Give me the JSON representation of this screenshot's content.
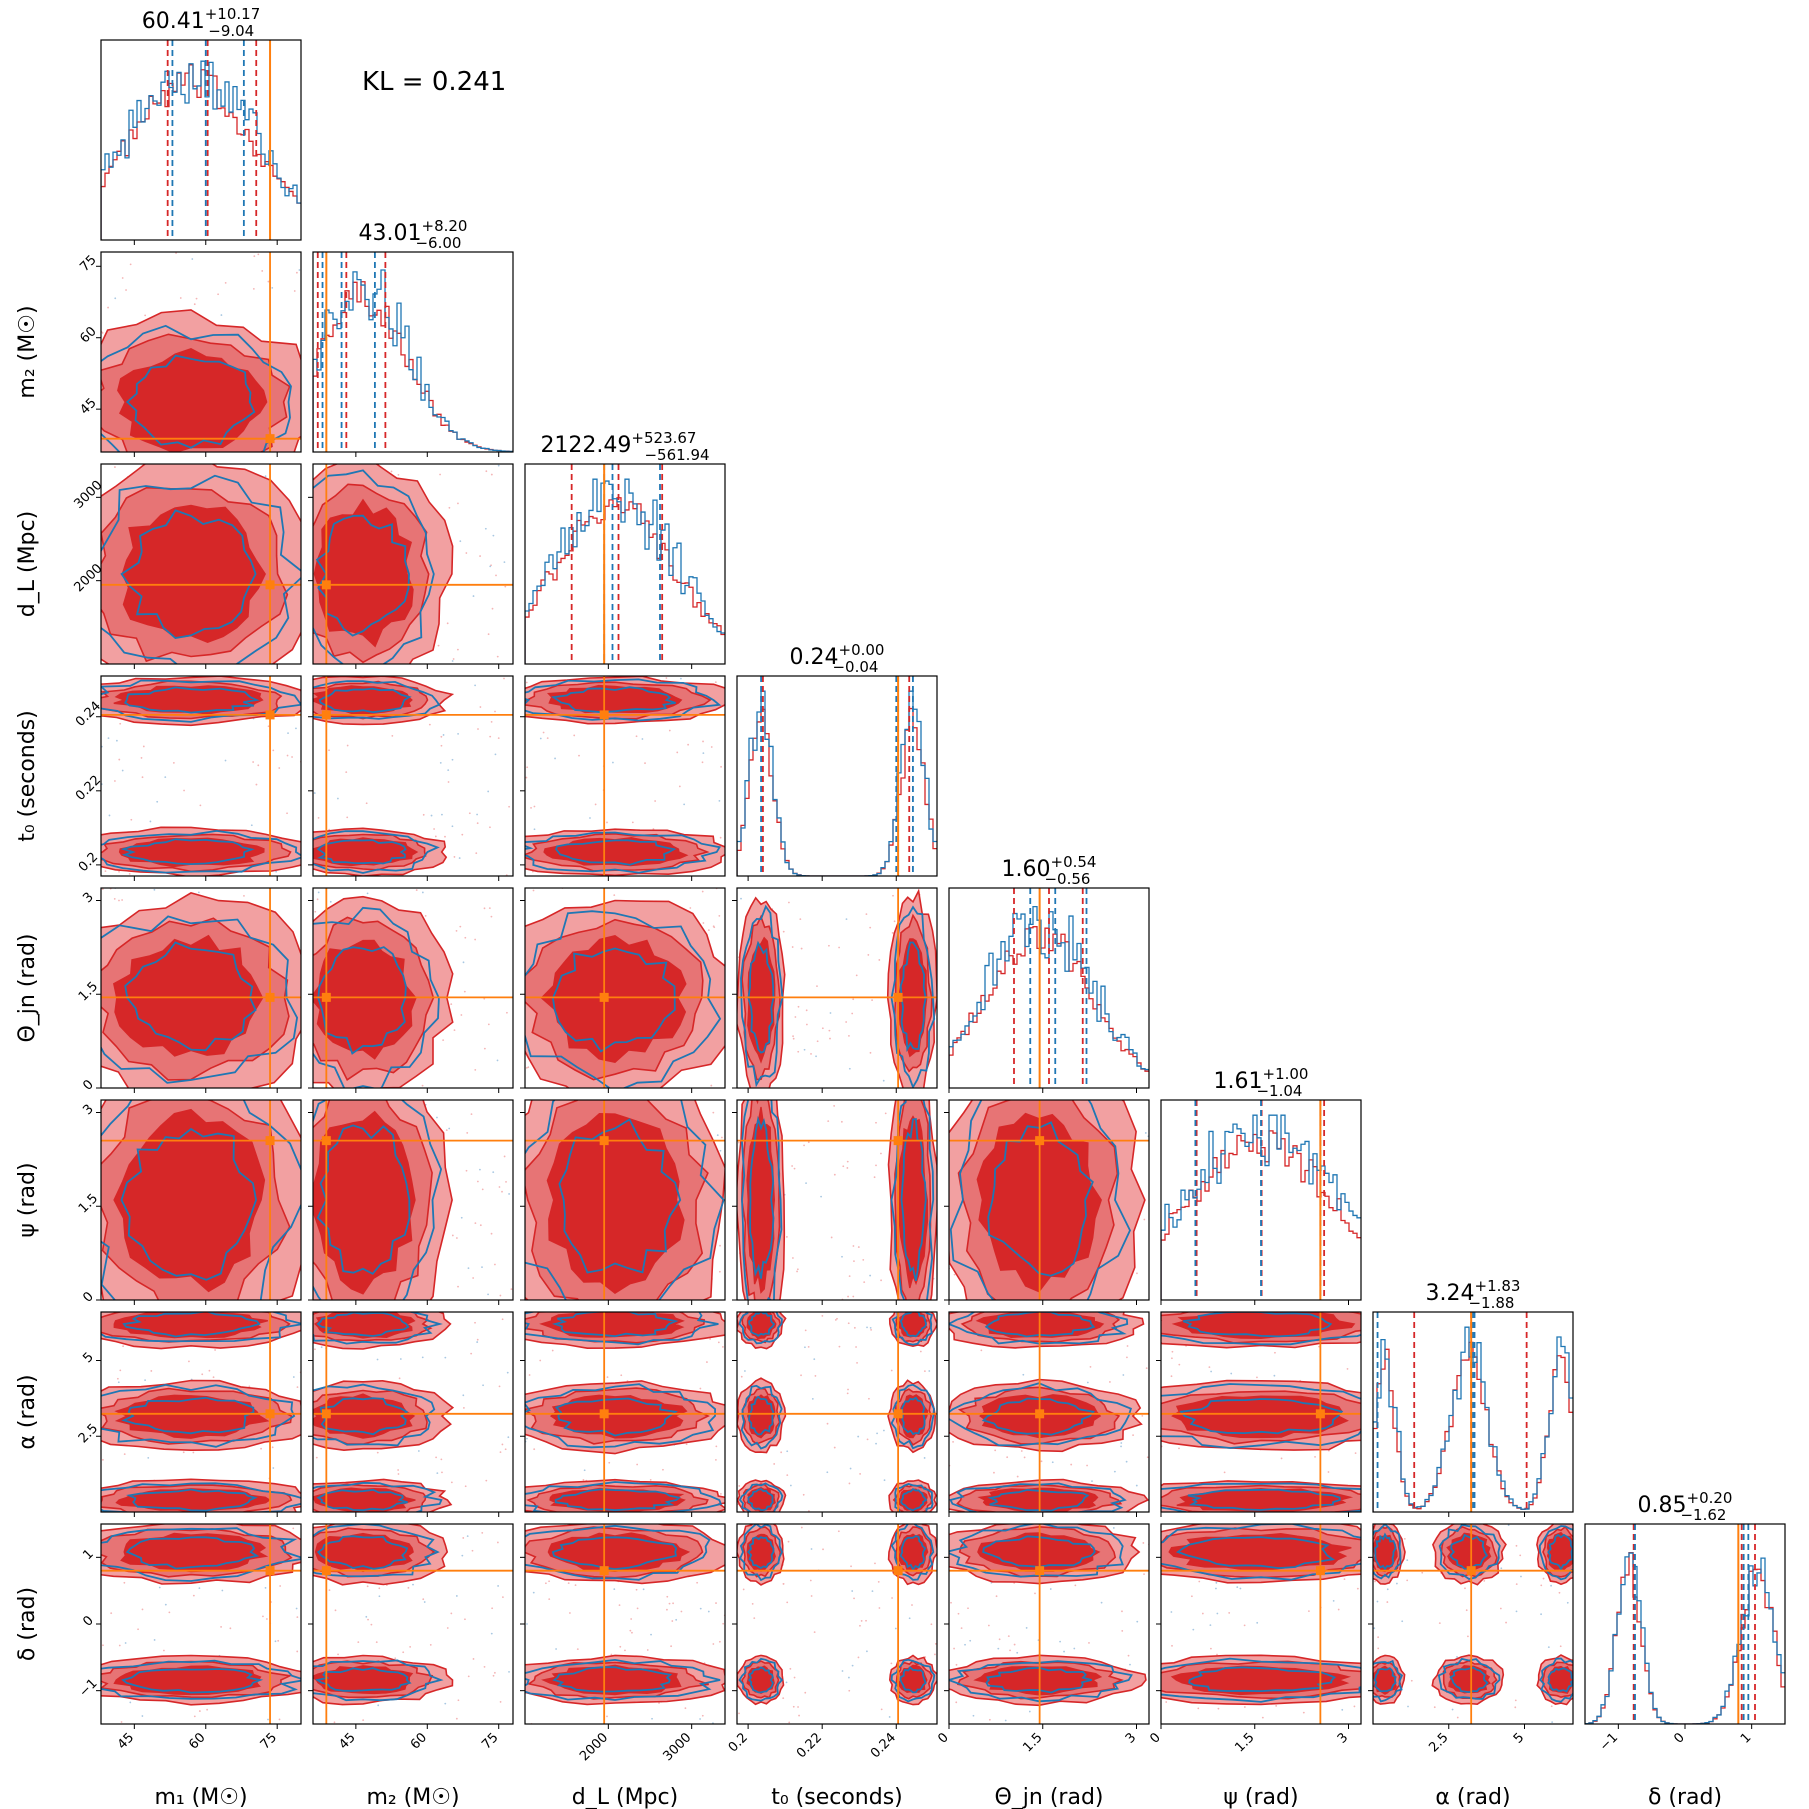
{
  "figure": {
    "kl_text": "KL = 0.241",
    "colors": {
      "red": "#d62728",
      "red_light": "#f2a0a1",
      "red_mid": "#e77475",
      "blue": "#1f77b4",
      "truth": "#ff7f0e"
    }
  },
  "chart_data": {
    "type": "corner",
    "parameters": [
      {
        "key": "m1",
        "label": "m₁ (M☉)",
        "range": [
          38,
          80
        ],
        "ticks": [
          45,
          60,
          75
        ],
        "truth": 73.5,
        "title_med": "60.41",
        "title_plus": "+10.17",
        "title_minus": "−9.04",
        "q_red": [
          52,
          60.4,
          70.6
        ],
        "q_blue": [
          53,
          60,
          68
        ]
      },
      {
        "key": "m2",
        "label": "m₂ (M☉)",
        "range": [
          36,
          78
        ],
        "ticks": [
          45,
          60,
          75
        ],
        "truth": 38.8,
        "title_med": "43.01",
        "title_plus": "+8.20",
        "title_minus": "−6.00",
        "q_red": [
          37,
          43.0,
          51.2
        ],
        "q_blue": [
          38,
          42,
          49
        ]
      },
      {
        "key": "dL",
        "label": "d_L (Mpc)",
        "range": [
          1000,
          3400
        ],
        "ticks": [
          2000,
          3000
        ],
        "truth": 1950,
        "title_med": "2122.49",
        "title_plus": "+523.67",
        "title_minus": "−561.94",
        "q_red": [
          1560,
          2122,
          2646
        ],
        "q_blue": [
          1950,
          2050,
          2620
        ]
      },
      {
        "key": "t0",
        "label": "t₀ (seconds)",
        "range": [
          0.197,
          0.251
        ],
        "ticks": [
          0.2,
          0.22,
          0.24
        ],
        "truth": 0.2405,
        "title_med": "0.24",
        "title_plus": "+0.00",
        "title_minus": "−0.04",
        "q_red": [
          0.204,
          0.2405,
          0.2435
        ],
        "q_blue": [
          0.2035,
          0.24,
          0.2445
        ]
      },
      {
        "key": "thetajn",
        "label": "Θ_jn (rad)",
        "range": [
          0.0,
          3.2
        ],
        "ticks": [
          0.0,
          1.5,
          3.0
        ],
        "truth": 1.45,
        "title_med": "1.60",
        "title_plus": "+0.54",
        "title_minus": "−0.56",
        "q_red": [
          1.04,
          1.6,
          2.14
        ],
        "q_blue": [
          1.3,
          1.7,
          2.2
        ]
      },
      {
        "key": "psi",
        "label": "ψ (rad)",
        "range": [
          0.0,
          3.2
        ],
        "ticks": [
          0.0,
          1.5,
          3.0
        ],
        "truth": 2.55,
        "title_med": "1.61",
        "title_plus": "+1.00",
        "title_minus": "−1.04",
        "q_red": [
          0.57,
          1.61,
          2.61
        ],
        "q_blue": [
          0.55,
          1.6,
          2.55
        ]
      },
      {
        "key": "alpha",
        "label": "α (rad)",
        "range": [
          0.0,
          6.6
        ],
        "ticks": [
          2.5,
          5.0
        ],
        "truth": 3.24,
        "title_med": "3.24",
        "title_plus": "+1.83",
        "title_minus": "−1.88",
        "q_red": [
          1.36,
          3.24,
          5.07
        ],
        "q_blue": [
          0.15,
          3.3,
          3.35
        ]
      },
      {
        "key": "delta",
        "label": "δ (rad)",
        "range": [
          -1.5,
          1.5
        ],
        "ticks": [
          -1,
          0,
          1
        ],
        "truth": 0.8,
        "title_med": "0.85",
        "title_plus": "+0.20",
        "title_minus": "−1.62",
        "q_red": [
          -0.77,
          0.85,
          1.05
        ],
        "q_blue": [
          -0.75,
          0.88,
          0.95
        ]
      }
    ],
    "series": [
      {
        "name": "",
        "color": "#d62728"
      },
      {
        "name": "",
        "color": "#1f77b4"
      }
    ],
    "truth_color": "#ff7f0e",
    "grid": false
  }
}
